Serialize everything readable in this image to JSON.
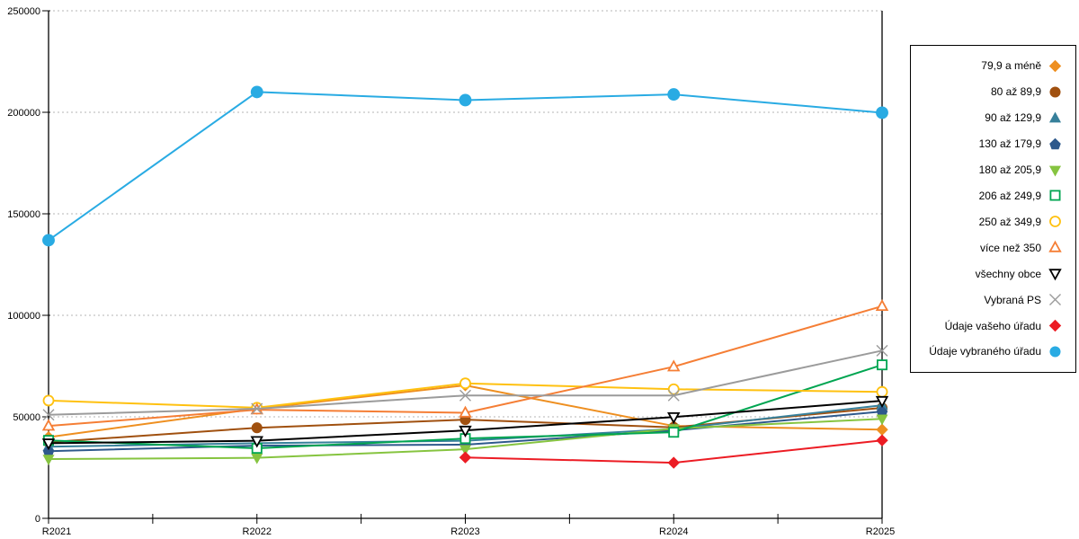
{
  "chart_data": {
    "type": "line",
    "title": "",
    "xlabel": "",
    "ylabel": "",
    "grid": "horizontal-dotted",
    "legend_position": "right",
    "x_categories": [
      "R2021",
      "R2022",
      "R2023",
      "R2024",
      "R2025"
    ],
    "y_axis": {
      "min": 0,
      "max": 250000,
      "step": 50000,
      "tick_labels": [
        "0",
        "50000",
        "100000",
        "150000",
        "200000",
        "250000"
      ]
    },
    "series": [
      {
        "name": "79,9 a méně",
        "marker": "diamond",
        "fill": "solid",
        "color": "#EE8F20",
        "values": [
          40000,
          54000,
          65500,
          45500,
          43700
        ]
      },
      {
        "name": "80 až 89,9",
        "marker": "circle",
        "fill": "solid",
        "color": "#A0500F",
        "values": [
          37500,
          44600,
          48600,
          44800,
          54400
        ]
      },
      {
        "name": "90 až 129,9",
        "marker": "triangle-up",
        "fill": "solid",
        "color": "#37809B",
        "values": [
          35300,
          37000,
          38200,
          44000,
          55700
        ]
      },
      {
        "name": "130 až 179,9",
        "marker": "pentagon",
        "fill": "solid",
        "color": "#2E598C",
        "values": [
          33100,
          35800,
          36300,
          43300,
          52600
        ]
      },
      {
        "name": "180 až 205,9",
        "marker": "triangle-down",
        "fill": "solid",
        "color": "#86C440",
        "values": [
          29200,
          29800,
          34000,
          44200,
          49000
        ]
      },
      {
        "name": "206 až 249,9",
        "marker": "square",
        "fill": "open",
        "color": "#00A551",
        "values": [
          38400,
          34500,
          39300,
          42400,
          75600
        ]
      },
      {
        "name": "250 až 349,9",
        "marker": "circle",
        "fill": "open",
        "color": "#FFC110",
        "values": [
          58000,
          54500,
          66500,
          63600,
          62300
        ]
      },
      {
        "name": "více než 350",
        "marker": "triangle-up",
        "fill": "open",
        "color": "#F57E35",
        "values": [
          45500,
          53500,
          52000,
          74700,
          104500
        ]
      },
      {
        "name": "všechny obce",
        "marker": "triangle-down",
        "fill": "open",
        "color": "#000000",
        "values": [
          37000,
          38200,
          43300,
          49900,
          57900
        ]
      },
      {
        "name": "Vybraná PS",
        "marker": "x",
        "fill": "line",
        "color": "#9B9B9B",
        "values": [
          51000,
          54000,
          60500,
          60500,
          82600
        ]
      },
      {
        "name": "Údaje vašeho úřadu",
        "marker": "diamond",
        "fill": "solid",
        "color": "#EC1C24",
        "values": [
          null,
          null,
          30000,
          27400,
          38400
        ]
      },
      {
        "name": "Údaje vybraného úřadu",
        "marker": "circle",
        "fill": "solid",
        "color": "#29ABE3",
        "values": [
          137000,
          210000,
          206000,
          208800,
          199800
        ]
      }
    ]
  }
}
